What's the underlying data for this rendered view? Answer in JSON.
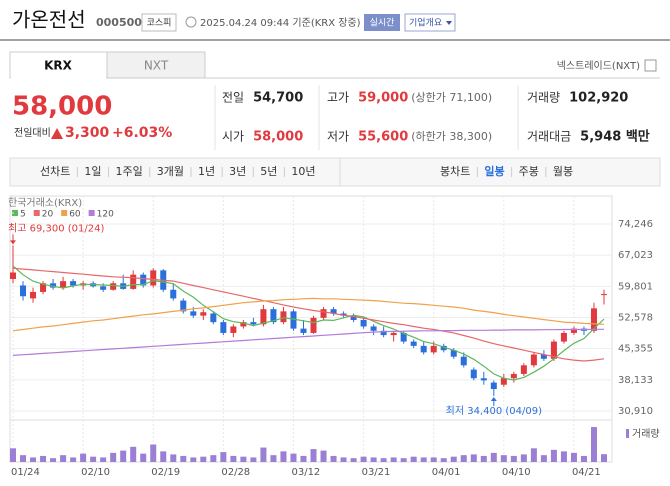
{
  "header": {
    "name": "가온전선",
    "code": "000500",
    "market": "코스피",
    "timestamp": "2025.04.24 09:44 기준(KRX 장중)",
    "realtime": "실시간",
    "company_info": "기업개요"
  },
  "tabs": {
    "items": [
      "KRX",
      "NXT"
    ],
    "nextrade": "넥스트레이드(NXT)"
  },
  "quote": {
    "price": "58,000",
    "change_label": "전일대비",
    "change": "3,300",
    "change_rate": "+6.03%",
    "color": "#e0393e",
    "stats": [
      {
        "label": "전일",
        "value": "54,700"
      },
      {
        "label": "고가",
        "value": "59,000",
        "note": "(상한가 71,100)",
        "color": "#e0393e"
      },
      {
        "label": "거래량",
        "value": "102,920"
      },
      {
        "label": "시가",
        "value": "58,000",
        "color": "#e0393e"
      },
      {
        "label": "저가",
        "value": "55,600",
        "note": "(하한가 38,300)",
        "color": "#e0393e"
      },
      {
        "label": "거래대금",
        "value": "5,948 백만"
      }
    ]
  },
  "chart_controls": {
    "line_chart": "선차트",
    "periods": [
      "1일",
      "1주일",
      "3개월",
      "1년",
      "3년",
      "5년",
      "10년"
    ],
    "candle_chart": "봉차트",
    "candle_periods": [
      "일봉",
      "주봉",
      "월봉"
    ],
    "active_candle_period": 0
  },
  "chart_data": {
    "type": "candlestick",
    "source": "한국거래소(KRX)",
    "categories": [
      "01/24",
      null,
      null,
      null,
      null,
      null,
      null,
      "02/10",
      null,
      null,
      null,
      null,
      null,
      null,
      "02/19",
      null,
      null,
      null,
      null,
      null,
      null,
      "02/28",
      null,
      null,
      null,
      null,
      null,
      null,
      "03/12",
      null,
      null,
      null,
      null,
      null,
      null,
      "03/21",
      null,
      null,
      null,
      null,
      null,
      null,
      "04/01",
      null,
      null,
      null,
      null,
      null,
      null,
      "04/10",
      null,
      null,
      null,
      null,
      null,
      null,
      "04/21",
      null,
      null,
      null
    ],
    "open": [
      61500,
      60000,
      57000,
      58500,
      60500,
      59500,
      61000,
      60000,
      60500,
      59800,
      59000,
      60500,
      59200,
      62500,
      60000,
      63500,
      59000,
      56500,
      54000,
      53000,
      53500,
      51500,
      49000,
      50500,
      51500,
      51000,
      54500,
      51500,
      54000,
      50000,
      49000,
      52500,
      54500,
      53500,
      53000,
      52000,
      50500,
      49500,
      48500,
      49000,
      47000,
      46000,
      44500,
      46000,
      45000,
      43500,
      40500,
      38500,
      37500,
      37000,
      38500,
      39500,
      41500,
      44000,
      43000,
      47000,
      49000,
      50000,
      49500,
      58000
    ],
    "high": [
      69300,
      61000,
      59500,
      61000,
      61500,
      62000,
      61500,
      61000,
      61000,
      60500,
      61000,
      62500,
      63500,
      63000,
      64000,
      63800,
      60500,
      57000,
      55000,
      54500,
      54000,
      52000,
      51000,
      52000,
      52500,
      55500,
      55000,
      55000,
      54500,
      52000,
      53000,
      55000,
      55000,
      54000,
      53500,
      52500,
      51000,
      50500,
      49500,
      49500,
      47500,
      47000,
      47000,
      46500,
      45500,
      44500,
      41000,
      40000,
      38000,
      39500,
      40000,
      42000,
      44500,
      45000,
      47500,
      49500,
      50500,
      50500,
      56000,
      59000
    ],
    "low": [
      60500,
      56500,
      56000,
      58000,
      59000,
      59000,
      59500,
      59000,
      59500,
      58500,
      58800,
      59000,
      59000,
      59500,
      59500,
      58500,
      56500,
      53500,
      52500,
      52000,
      51000,
      48500,
      48000,
      50000,
      50500,
      50500,
      51000,
      51000,
      49500,
      48500,
      48800,
      52000,
      53000,
      52500,
      51500,
      50000,
      48500,
      48000,
      47000,
      46500,
      45500,
      44000,
      44000,
      44500,
      43000,
      41000,
      38000,
      37000,
      34400,
      36500,
      37500,
      39000,
      41000,
      42500,
      42500,
      46500,
      48500,
      48500,
      49000,
      55600
    ],
    "close": [
      63000,
      57500,
      58500,
      60500,
      59500,
      61000,
      60000,
      60500,
      59800,
      59000,
      60500,
      59200,
      62500,
      60000,
      63500,
      59000,
      57000,
      54000,
      53000,
      53800,
      51500,
      49000,
      50500,
      51500,
      51000,
      54500,
      51500,
      54000,
      50000,
      49000,
      52500,
      54500,
      53500,
      53000,
      52000,
      50500,
      49500,
      48500,
      49000,
      47000,
      46000,
      44500,
      46000,
      45000,
      43500,
      41500,
      38500,
      38000,
      36000,
      38500,
      39500,
      41500,
      44000,
      43000,
      47000,
      49000,
      50000,
      49500,
      54700,
      58000
    ],
    "up_color": "#e0393e",
    "down_color": "#2b6fdb",
    "series": [
      {
        "name": "5",
        "color": "#5cb85c",
        "values": [
          64500,
          62500,
          61000,
          60300,
          59800,
          59400,
          59900,
          60300,
          60200,
          60100,
          60000,
          59800,
          60200,
          60200,
          61100,
          60800,
          60400,
          58700,
          57300,
          55400,
          53900,
          52300,
          51600,
          51300,
          50700,
          51300,
          51800,
          52500,
          52200,
          51800,
          51400,
          52000,
          51900,
          52500,
          53100,
          52700,
          51700,
          50700,
          49900,
          48900,
          48000,
          47000,
          46500,
          45700,
          45000,
          44100,
          42900,
          41300,
          39500,
          38500,
          38100,
          38700,
          39900,
          41300,
          43000,
          44900,
          46600,
          47700,
          50000,
          52200
        ]
      },
      {
        "name": "20",
        "color": "#e8676a",
        "values": [
          64000,
          63800,
          63600,
          63400,
          63200,
          63000,
          62800,
          62600,
          62400,
          62200,
          62000,
          61900,
          61800,
          61600,
          61400,
          61200,
          61000,
          60500,
          60000,
          59500,
          59000,
          58500,
          58000,
          57500,
          57000,
          56500,
          56000,
          55500,
          55000,
          54600,
          54200,
          53900,
          53500,
          53100,
          52800,
          52400,
          52000,
          51600,
          51200,
          50900,
          50500,
          50100,
          49800,
          49400,
          49000,
          48400,
          47800,
          47100,
          46500,
          46000,
          45500,
          45000,
          44500,
          44000,
          43500,
          43000,
          42700,
          42500,
          42700,
          43000
        ]
      },
      {
        "name": "60",
        "color": "#f0a14b",
        "values": [
          49500,
          49800,
          50100,
          50400,
          50600,
          50900,
          51200,
          51500,
          51800,
          52000,
          52300,
          52600,
          52900,
          53200,
          53400,
          53700,
          54000,
          54300,
          54600,
          54800,
          55100,
          55400,
          55700,
          56000,
          56200,
          56400,
          56500,
          56700,
          56800,
          56900,
          57000,
          56900,
          56900,
          56800,
          56700,
          56600,
          56500,
          56300,
          56100,
          55900,
          55800,
          55600,
          55400,
          55200,
          55000,
          54700,
          54300,
          54000,
          53700,
          53300,
          53000,
          52700,
          52400,
          52100,
          51800,
          51500,
          51400,
          51200,
          51100,
          51000
        ]
      },
      {
        "name": "120",
        "color": "#b27ad9",
        "values": [
          43800,
          43950,
          44100,
          44250,
          44400,
          44550,
          44700,
          44850,
          45000,
          45150,
          45300,
          45450,
          45600,
          45750,
          45900,
          46050,
          46200,
          46350,
          46500,
          46650,
          46800,
          46950,
          47100,
          47250,
          47400,
          47550,
          47700,
          47850,
          48000,
          48150,
          48300,
          48450,
          48600,
          48750,
          48900,
          49050,
          49200,
          49300,
          49350,
          49400,
          49450,
          49500,
          49500,
          49550,
          49550,
          49600,
          49600,
          49600,
          49650,
          49650,
          49700,
          49700,
          49700,
          49750,
          49750,
          49800,
          49800,
          49800,
          49850,
          49850
        ]
      }
    ],
    "ylim": [
      29290,
      79800
    ],
    "yticks": [
      {
        "value": 30910,
        "label": "30,910"
      },
      {
        "value": 38133,
        "label": "38,133"
      },
      {
        "value": 45355,
        "label": "45,355"
      },
      {
        "value": 52578,
        "label": "52,578"
      },
      {
        "value": 59801,
        "label": "59,801"
      },
      {
        "value": 67023,
        "label": "67,023"
      },
      {
        "value": 74246,
        "label": "74,246"
      }
    ],
    "grid": true,
    "annotations": [
      {
        "text": "최고 69,300 (01/24)",
        "value": 69300,
        "color": "#e0393e"
      },
      {
        "text": "최저 34,400 (04/09)",
        "value": 34400,
        "color": "#2b6fdb"
      }
    ],
    "volume": {
      "name": "거래량",
      "color": "#9b7fd4",
      "ylim": [
        0,
        500000
      ],
      "values": [
        180000,
        90000,
        60000,
        80000,
        50000,
        90000,
        60000,
        110000,
        70000,
        60000,
        120000,
        150000,
        200000,
        110000,
        230000,
        140000,
        100000,
        80000,
        60000,
        70000,
        90000,
        130000,
        80000,
        70000,
        60000,
        190000,
        90000,
        140000,
        110000,
        80000,
        170000,
        150000,
        80000,
        60000,
        50000,
        70000,
        60000,
        50000,
        60000,
        50000,
        70000,
        60000,
        60000,
        50000,
        70000,
        90000,
        100000,
        80000,
        120000,
        90000,
        80000,
        100000,
        180000,
        90000,
        160000,
        140000,
        120000,
        80000,
        460000,
        102920
      ]
    }
  }
}
